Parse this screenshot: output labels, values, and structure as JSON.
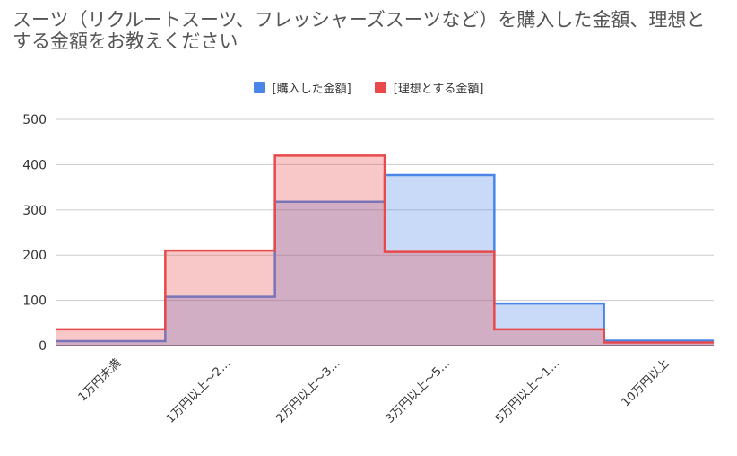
{
  "chart_data": {
    "type": "area",
    "step": true,
    "title": "スーツ（リクルートスーツ、フレッシャーズスーツなど）を購入した金額、理想とする金額をお教えください",
    "categories": [
      "1万円未満",
      "1万円以上～2…",
      "2万円以上～3…",
      "3万円以上～5…",
      "5万円以上～1…",
      "10万円以上"
    ],
    "series": [
      {
        "name": "[購入した金額]",
        "values": [
          10,
          108,
          318,
          377,
          93,
          11
        ],
        "color": "#4a86e8"
      },
      {
        "name": "[理想とする金額]",
        "values": [
          36,
          210,
          420,
          207,
          36,
          7
        ],
        "color": "#e84a4a"
      }
    ],
    "yticks": [
      0,
      100,
      200,
      300,
      400,
      500
    ],
    "ylim": [
      0,
      500
    ],
    "grid": true,
    "legend_position": "top"
  }
}
